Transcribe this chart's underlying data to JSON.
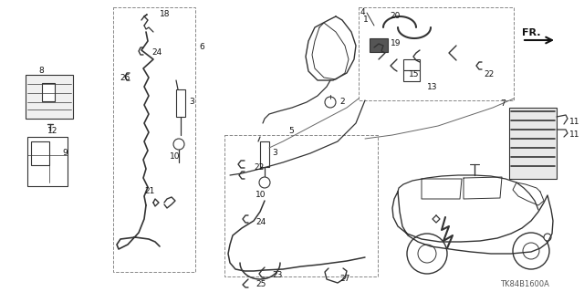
{
  "background_color": "#ffffff",
  "diagram_id": "TK84B1600A",
  "figsize": [
    6.4,
    3.2
  ],
  "dpi": 100,
  "line_color": "#333333",
  "text_color": "#111111",
  "box_color": "#888888"
}
